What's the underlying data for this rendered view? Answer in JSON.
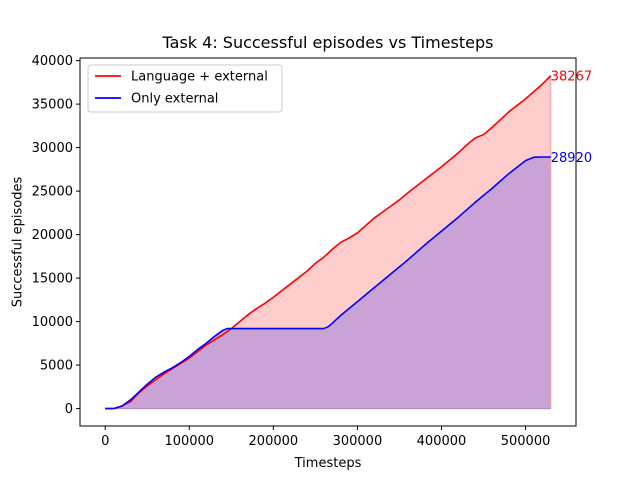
{
  "chart_data": {
    "type": "area",
    "title": "Task 4: Successful episodes vs Timesteps",
    "xlabel": "Timesteps",
    "ylabel": "Successful episodes",
    "xlim": [
      -30000,
      560000
    ],
    "ylim": [
      -2000,
      40300
    ],
    "xticks": [
      0,
      100000,
      200000,
      300000,
      400000,
      500000
    ],
    "yticks": [
      0,
      5000,
      10000,
      15000,
      20000,
      25000,
      30000,
      35000,
      40000
    ],
    "grid": false,
    "legend_position": "upper-left",
    "series": [
      {
        "name": "Language + external",
        "color": "#ff0000",
        "fill_color": "#ffcccc",
        "end_label": "38267",
        "x": [
          0,
          10000,
          20000,
          30000,
          40000,
          50000,
          60000,
          70000,
          80000,
          90000,
          100000,
          120000,
          140000,
          150000,
          160000,
          170000,
          180000,
          190000,
          200000,
          220000,
          240000,
          250000,
          260000,
          270000,
          280000,
          290000,
          300000,
          320000,
          340000,
          350000,
          360000,
          380000,
          400000,
          420000,
          430000,
          440000,
          450000,
          460000,
          480000,
          500000,
          520000,
          530000
        ],
        "y": [
          0,
          0,
          300,
          800,
          1800,
          2600,
          3300,
          4000,
          4600,
          5200,
          5800,
          7300,
          8500,
          9200,
          10000,
          10800,
          11500,
          12100,
          12800,
          14300,
          15800,
          16700,
          17400,
          18300,
          19100,
          19600,
          20200,
          21900,
          23300,
          24000,
          24800,
          26300,
          27800,
          29400,
          30300,
          31100,
          31500,
          32300,
          34100,
          35600,
          37300,
          38267
        ]
      },
      {
        "name": "Only external",
        "color": "#0000ff",
        "fill_color": "#c9a3d6",
        "end_label": "28920",
        "x": [
          0,
          10000,
          20000,
          30000,
          40000,
          50000,
          60000,
          70000,
          80000,
          90000,
          100000,
          110000,
          120000,
          130000,
          140000,
          145000,
          150000,
          200000,
          250000,
          260000,
          265000,
          270000,
          280000,
          300000,
          320000,
          340000,
          360000,
          380000,
          400000,
          420000,
          440000,
          460000,
          480000,
          500000,
          510000,
          520000,
          530000
        ],
        "y": [
          0,
          0,
          300,
          1000,
          1900,
          2800,
          3600,
          4200,
          4700,
          5300,
          6000,
          6800,
          7500,
          8300,
          9000,
          9200,
          9200,
          9200,
          9200,
          9200,
          9400,
          9800,
          10700,
          12300,
          13900,
          15500,
          17100,
          18800,
          20400,
          22000,
          23700,
          25300,
          27000,
          28500,
          28900,
          28920,
          28920
        ]
      }
    ]
  }
}
